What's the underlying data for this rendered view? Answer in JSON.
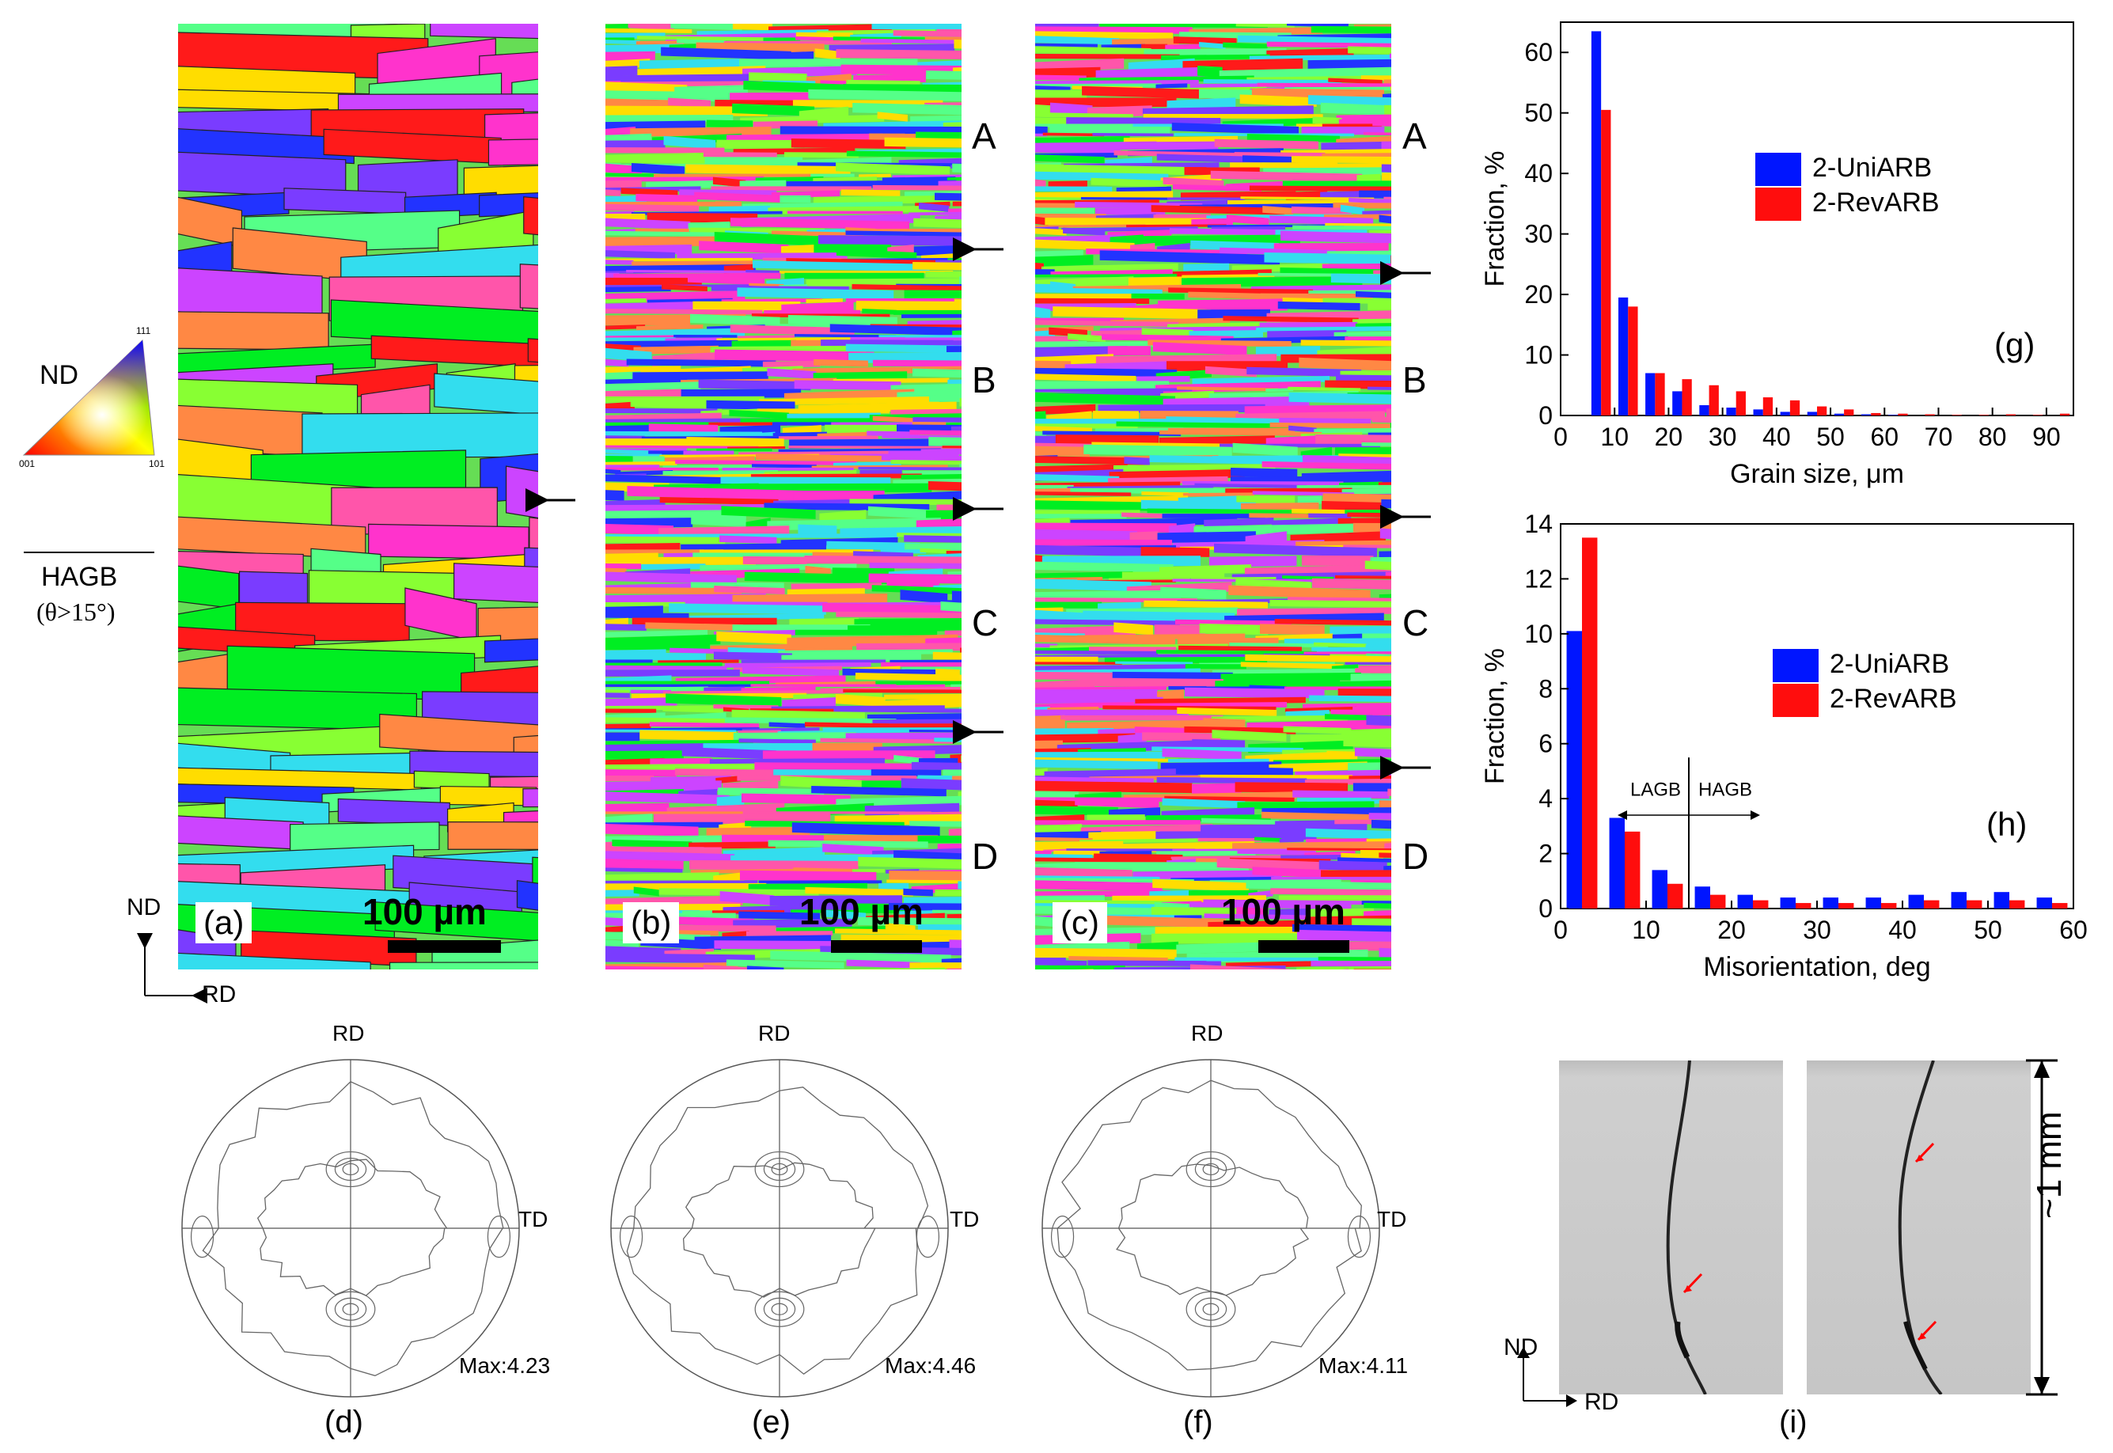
{
  "colors": {
    "uni": "#0015ff",
    "rev": "#ff0d0d"
  },
  "ebsd_panels": [
    {
      "tag": "(a)",
      "scale": "100 µm",
      "arrows": 1
    },
    {
      "tag": "(b)",
      "scale": "100 µm",
      "arrows": 3
    },
    {
      "tag": "(c)",
      "scale": "100 µm",
      "arrows": 3
    }
  ],
  "regions": [
    "A",
    "B",
    "C",
    "D"
  ],
  "ipf_key": {
    "nd": "ND",
    "c111": "111",
    "c001": "001",
    "c101": "101",
    "hagb": "HAGB",
    "hagb_condition": "(θ>15°)"
  },
  "axes_ebsd": {
    "nd": "ND",
    "rd": "RD"
  },
  "pole_figures": [
    {
      "rd": "RD",
      "td": "TD",
      "max": "Max:4.23",
      "caption": "(d)"
    },
    {
      "rd": "RD",
      "td": "TD",
      "max": "Max:4.46",
      "caption": "(e)"
    },
    {
      "rd": "RD",
      "td": "TD",
      "max": "Max:4.11",
      "caption": "(f)"
    }
  ],
  "micrograph": {
    "scale": "~1 mm",
    "nd": "ND",
    "rd": "RD",
    "caption": "(i)"
  },
  "chart_data": [
    {
      "type": "bar",
      "panel": "(g)",
      "xlabel": "Grain size, μm",
      "ylabel": "Fraction, %",
      "xlim": [
        0,
        95
      ],
      "ylim": [
        0,
        65
      ],
      "xticks": [
        0,
        10,
        20,
        30,
        40,
        50,
        60,
        70,
        80,
        90
      ],
      "yticks": [
        0,
        10,
        20,
        30,
        40,
        50,
        60
      ],
      "x": [
        7.5,
        12.5,
        17.5,
        22.5,
        27.5,
        32.5,
        37.5,
        42.5,
        47.5,
        52.5,
        57.5,
        62.5,
        67.5,
        72.5,
        77.5,
        82.5,
        87.5,
        92.5
      ],
      "series": [
        {
          "name": "2-UniARB",
          "values": [
            63.5,
            19.5,
            7.0,
            4.0,
            1.7,
            1.3,
            1.0,
            0.6,
            0.6,
            0.3,
            0.2,
            0.1,
            0,
            0,
            0,
            0,
            0,
            0
          ]
        },
        {
          "name": "2-RevARB",
          "values": [
            50.5,
            18.0,
            7.0,
            6.0,
            5.0,
            4.0,
            3.0,
            2.5,
            1.5,
            1.0,
            0.4,
            0.3,
            0.2,
            0.1,
            0.1,
            0.2,
            0.1,
            0.3
          ]
        }
      ]
    },
    {
      "type": "bar",
      "panel": "(h)",
      "xlabel": "Misorientation, deg",
      "ylabel": "Fraction, %",
      "xlim": [
        0,
        60
      ],
      "ylim": [
        0,
        14
      ],
      "xticks": [
        0,
        10,
        20,
        30,
        40,
        50,
        60
      ],
      "yticks": [
        0,
        2,
        4,
        6,
        8,
        10,
        12,
        14
      ],
      "x": [
        2.5,
        7.5,
        12.5,
        17.5,
        22.5,
        27.5,
        32.5,
        37.5,
        42.5,
        47.5,
        52.5,
        57.5
      ],
      "series": [
        {
          "name": "2-UniARB",
          "values": [
            10.1,
            3.3,
            1.4,
            0.8,
            0.5,
            0.4,
            0.4,
            0.4,
            0.5,
            0.6,
            0.6,
            0.4
          ]
        },
        {
          "name": "2-RevARB",
          "values": [
            13.5,
            2.8,
            0.9,
            0.5,
            0.3,
            0.2,
            0.2,
            0.2,
            0.3,
            0.3,
            0.3,
            0.2
          ]
        }
      ],
      "annotations": {
        "lagb": "LAGB",
        "hagb": "HAGB",
        "boundary_deg": 15
      }
    }
  ]
}
